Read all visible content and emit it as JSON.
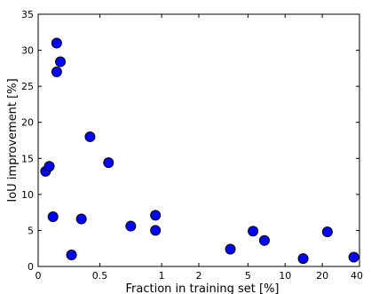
{
  "chart_data": {
    "type": "scatter",
    "xlabel": "Fraction in training set [%]",
    "ylabel": "IoU improvement [%]",
    "x_ticks": [
      "0",
      "0.5",
      "1",
      "2",
      "5",
      "10",
      "20",
      "40"
    ],
    "y_ticks": [
      "0",
      "5",
      "10",
      "15",
      "20",
      "25",
      "30",
      "35"
    ],
    "ylim": [
      0,
      35
    ],
    "grid": false,
    "marker_color": "#0000ff",
    "points": [
      {
        "x": 0.06,
        "y": 13.2
      },
      {
        "x": 0.09,
        "y": 13.9
      },
      {
        "x": 0.12,
        "y": 6.9
      },
      {
        "x": 0.15,
        "y": 31.0
      },
      {
        "x": 0.15,
        "y": 27.0
      },
      {
        "x": 0.18,
        "y": 28.4
      },
      {
        "x": 0.27,
        "y": 1.6
      },
      {
        "x": 0.35,
        "y": 6.6
      },
      {
        "x": 0.42,
        "y": 18.0
      },
      {
        "x": 0.57,
        "y": 14.4
      },
      {
        "x": 0.75,
        "y": 5.6
      },
      {
        "x": 0.95,
        "y": 5.0
      },
      {
        "x": 0.95,
        "y": 7.1
      },
      {
        "x": 3.6,
        "y": 2.4
      },
      {
        "x": 5.5,
        "y": 4.9
      },
      {
        "x": 6.8,
        "y": 3.6
      },
      {
        "x": 14.0,
        "y": 1.1
      },
      {
        "x": 22.0,
        "y": 4.8
      },
      {
        "x": 36.0,
        "y": 1.3
      }
    ]
  }
}
